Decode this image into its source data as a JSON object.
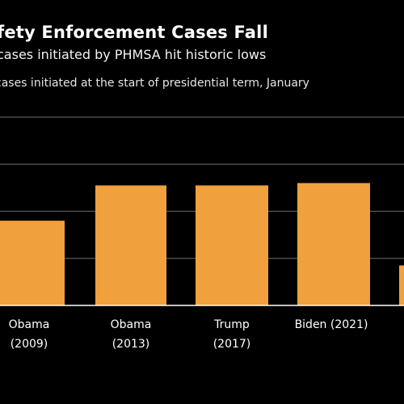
{
  "title": "fety Enforcement Cases Fall",
  "subtitle": "cases initiated by PHMSA hit historic lows",
  "caption": "cases initiated at the start of presidential term, January",
  "colors": {
    "bar": "#f0a03c",
    "background": "#000000",
    "grid": "#5a5a5a",
    "text": "#ffffff"
  },
  "chart_data": {
    "type": "bar",
    "categories": [
      [
        "Obama",
        "(2009)"
      ],
      [
        "Obama",
        "(2013)"
      ],
      [
        "Trump",
        "(2017)"
      ],
      [
        "Biden (2021)"
      ],
      [
        ""
      ]
    ],
    "values": [
      3.6,
      5.1,
      5.1,
      5.2,
      1.7
    ],
    "ylim": [
      0,
      8
    ],
    "grid": true,
    "title": "fety Enforcement Cases Fall",
    "xlabel": "",
    "ylabel": ""
  }
}
